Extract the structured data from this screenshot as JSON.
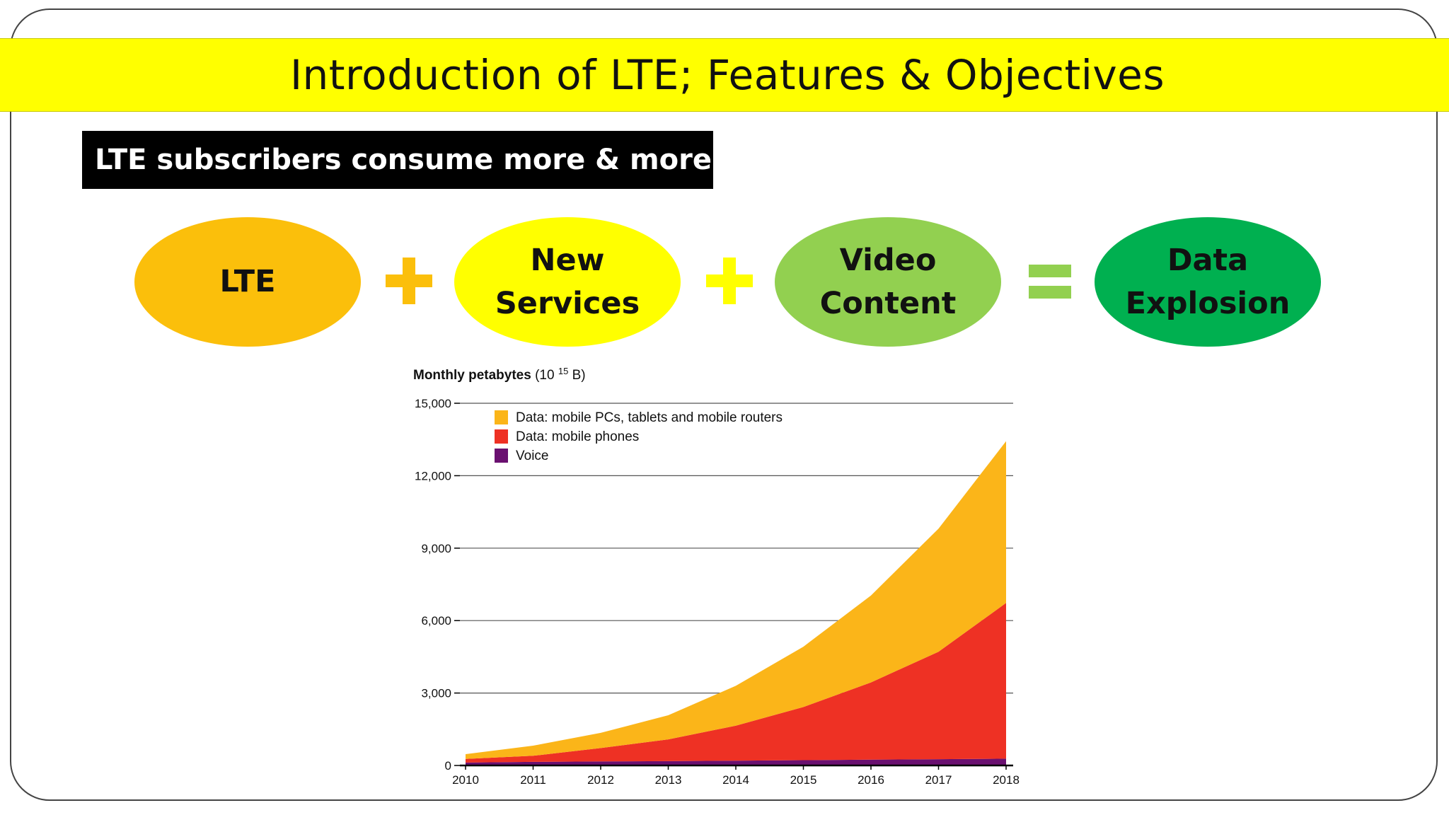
{
  "slide": {
    "title": "Introduction of LTE; Features & Objectives",
    "subtitle": "LTE subscribers consume more & more data"
  },
  "equation": {
    "terms": [
      {
        "label": "LTE",
        "color": "#fbbf0b"
      },
      {
        "label": "New\nServices",
        "color": "#ffff00"
      },
      {
        "label": "Video\nContent",
        "color": "#92d050"
      },
      {
        "label": "Data\nExplosion",
        "color": "#00b050"
      }
    ],
    "operators": [
      {
        "symbol": "plus",
        "color": "#fbbf0b"
      },
      {
        "symbol": "plus",
        "color": "#ffff00"
      },
      {
        "symbol": "equals",
        "color": "#92d050"
      }
    ]
  },
  "chart_data": {
    "type": "area",
    "stacked": true,
    "title": "Monthly petabytes (10¹⁵ B)",
    "title_bold": "Monthly petabytes",
    "title_unit": "(10",
    "title_exp": "15",
    "title_unit_end": " B)",
    "x": [
      2010,
      2011,
      2012,
      2013,
      2014,
      2015,
      2016,
      2017,
      2018
    ],
    "x_ticks": [
      "2010",
      "2011",
      "2012",
      "2013",
      "2014",
      "2015",
      "2016",
      "2017",
      "2018"
    ],
    "y_ticks": [
      "0",
      "3,000",
      "6,000",
      "9,000",
      "12,000",
      "15,000"
    ],
    "y_tick_values": [
      0,
      3000,
      6000,
      9000,
      12000,
      15000
    ],
    "ylim": [
      0,
      15000
    ],
    "grid": true,
    "legend_position": "top-left",
    "series": [
      {
        "name": "Voice",
        "color": "#6a1070",
        "values": [
          120,
          150,
          170,
          180,
          200,
          220,
          240,
          260,
          280
        ]
      },
      {
        "name": "Data: mobile phones",
        "color": "#ee3124",
        "values": [
          150,
          250,
          550,
          900,
          1450,
          2200,
          3200,
          4450,
          6450
        ]
      },
      {
        "name": "Data: mobile PCs, tablets and mobile routers",
        "color": "#fbb519",
        "values": [
          200,
          420,
          630,
          1000,
          1650,
          2500,
          3600,
          5100,
          6700
        ]
      }
    ],
    "legend_order": [
      "Data: mobile PCs, tablets and mobile routers",
      "Data: mobile phones",
      "Voice"
    ]
  }
}
